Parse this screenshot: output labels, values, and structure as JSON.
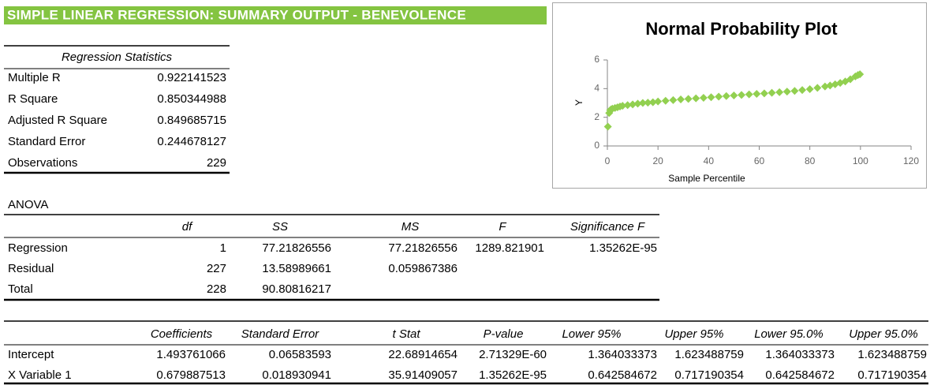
{
  "title": "SIMPLE LINEAR REGRESSION: SUMMARY OUTPUT - BENEVOLENCE",
  "regression_statistics": {
    "header": "Regression Statistics",
    "rows": [
      [
        "Multiple R",
        "0.922141523"
      ],
      [
        "R Square",
        "0.850344988"
      ],
      [
        "Adjusted R Square",
        "0.849685715"
      ],
      [
        "Standard Error",
        "0.244678127"
      ],
      [
        "Observations",
        "229"
      ]
    ]
  },
  "anova": {
    "label": "ANOVA",
    "columns": [
      "df",
      "SS",
      "MS",
      "F",
      "Significance F"
    ],
    "rows": [
      {
        "label": "Regression",
        "cells": [
          "1",
          "77.21826556",
          "77.21826556",
          "1289.821901",
          "1.35262E-95"
        ]
      },
      {
        "label": "Residual",
        "cells": [
          "227",
          "13.58989661",
          "0.059867386"
        ]
      },
      {
        "label": "Total",
        "cells": [
          "228",
          "90.80816217"
        ]
      }
    ]
  },
  "coefficients": {
    "columns": [
      "Coefficients",
      "Standard Error",
      "t Stat",
      "P-value",
      "Lower 95%",
      "Upper 95%",
      "Lower 95.0%",
      "Upper 95.0%"
    ],
    "rows": [
      {
        "label": "Intercept",
        "cells": [
          "1.493761066",
          "0.06583593",
          "22.68914654",
          "2.71329E-60",
          "1.364033373",
          "1.623488759",
          "1.364033373",
          "1.623488759"
        ]
      },
      {
        "label": "X Variable 1",
        "cells": [
          "0.679887513",
          "0.018930941",
          "35.91409057",
          "1.35262E-95",
          "0.642584672",
          "0.717190354",
          "0.642584672",
          "0.717190354"
        ]
      }
    ]
  },
  "chart_data": {
    "type": "scatter",
    "title": "Normal Probability Plot",
    "x_label": "Sample Percentile",
    "y_label": "Y",
    "color": "#92d050",
    "x": [
      0.2,
      0.7,
      1.1,
      1.5,
      2,
      3,
      4,
      5,
      6,
      8,
      10,
      12,
      14,
      16,
      18,
      20,
      23,
      26,
      29,
      32,
      35,
      38,
      41,
      44,
      47,
      50,
      53,
      56,
      59,
      62,
      65,
      68,
      71,
      74,
      77,
      80,
      83,
      86,
      88,
      90,
      92,
      94,
      96,
      98,
      99,
      99.8
    ],
    "values": [
      1.35,
      2.3,
      2.5,
      2.55,
      2.6,
      2.65,
      2.7,
      2.75,
      2.8,
      2.85,
      2.9,
      2.95,
      3.0,
      3.02,
      3.05,
      3.1,
      3.15,
      3.2,
      3.25,
      3.28,
      3.32,
      3.36,
      3.4,
      3.44,
      3.48,
      3.52,
      3.56,
      3.6,
      3.63,
      3.67,
      3.71,
      3.75,
      3.79,
      3.84,
      3.9,
      3.96,
      4.05,
      4.15,
      4.22,
      4.3,
      4.4,
      4.5,
      4.65,
      4.85,
      4.95,
      5.0
    ],
    "xlim": [
      0,
      120
    ],
    "xticks": [
      0,
      20,
      40,
      60,
      80,
      100,
      120
    ],
    "ylim": [
      0,
      6
    ],
    "yticks": [
      0,
      2,
      4,
      6
    ]
  }
}
